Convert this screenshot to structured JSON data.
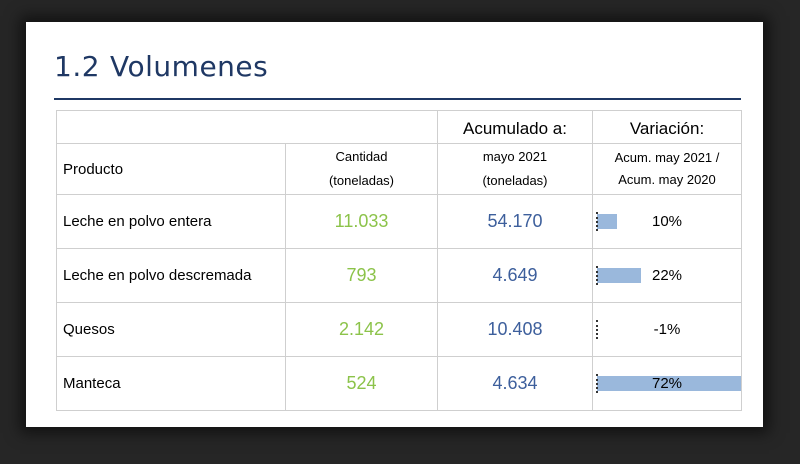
{
  "section": {
    "number": "1.2",
    "title": "Volumenes"
  },
  "headers": {
    "producto": "Producto",
    "cantidad_line1": "Cantidad",
    "cantidad_line2": "(toneladas)",
    "acumulado_line1": "Acumulado a:",
    "acumulado_line2": "mayo 2021",
    "acumulado_line3": "(toneladas)",
    "variacion_line1": "Variación:",
    "variacion_line2": "Acum. may 2021 /",
    "variacion_line3": "Acum. may 2020"
  },
  "rows": [
    {
      "producto": "Leche en polvo entera",
      "cantidad": "11.033",
      "acumulado": "54.170",
      "variacion": "10%",
      "variacion_value": 10
    },
    {
      "producto": "Leche en polvo descremada",
      "cantidad": "793",
      "acumulado": "4.649",
      "variacion": "22%",
      "variacion_value": 22
    },
    {
      "producto": "Quesos",
      "cantidad": "2.142",
      "acumulado": "10.408",
      "variacion": "-1%",
      "variacion_value": -1
    },
    {
      "producto": "Manteca",
      "cantidad": "524",
      "acumulado": "4.634",
      "variacion": "72%",
      "variacion_value": 72
    }
  ],
  "colors": {
    "title": "#1f3864",
    "cantidad": "#8cc34a",
    "acumulado": "#3d5f9c",
    "bar": "#9ab8dc"
  }
}
